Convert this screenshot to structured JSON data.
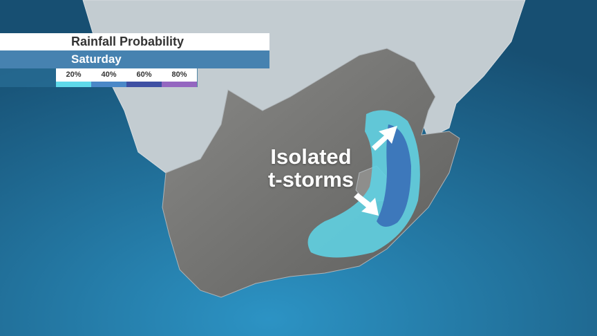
{
  "legend": {
    "title": "Rainfall Probability",
    "day": "Saturday",
    "scale": [
      {
        "label": "20%",
        "color": "#5fd9ea"
      },
      {
        "label": "40%",
        "color": "#4a88c8"
      },
      {
        "label": "60%",
        "color": "#3e4fa3"
      },
      {
        "label": "80%",
        "color": "#9466c0"
      }
    ]
  },
  "annotation": {
    "line1": "Isolated",
    "line2": "t-storms"
  },
  "colors": {
    "ocean": "#1f6f98",
    "land_other": "#c3ccd1",
    "land_focus": "#7d7d7b",
    "rain_low": "#5fd0e2",
    "rain_mid": "#3a6fb8"
  }
}
